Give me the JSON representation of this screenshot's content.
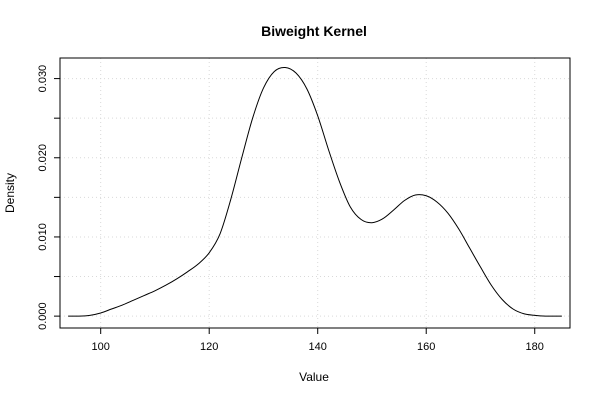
{
  "chart_data": {
    "type": "line",
    "title": "Biweight Kernel",
    "xlabel": "Value",
    "ylabel": "Density",
    "xlim": [
      92.5,
      186.5
    ],
    "ylim": [
      -0.0015,
      0.0326
    ],
    "xticks": [
      100,
      120,
      140,
      160,
      180
    ],
    "xtick_labels": [
      "100",
      "120",
      "140",
      "160",
      "180"
    ],
    "yticks": [
      0.0,
      0.005,
      0.01,
      0.015,
      0.02,
      0.025,
      0.03
    ],
    "ytick_labels": [
      "0.000",
      "",
      "0.010",
      "",
      "0.020",
      "",
      "0.030"
    ],
    "grid": true,
    "series": [
      {
        "x": [
          94,
          96,
          98,
          100,
          102,
          104,
          106,
          108,
          110,
          112,
          114,
          116,
          118,
          120,
          122,
          124,
          126,
          128,
          130,
          132,
          134,
          136,
          138,
          140,
          142,
          144,
          146,
          148,
          150,
          152,
          154,
          156,
          158,
          160,
          162,
          164,
          166,
          168,
          170,
          172,
          174,
          176,
          178,
          180,
          182,
          184,
          185
        ],
        "y": [
          0.0,
          0.0,
          0.0001,
          0.0004,
          0.0009,
          0.0014,
          0.002,
          0.0026,
          0.0032,
          0.0039,
          0.0047,
          0.0056,
          0.0066,
          0.008,
          0.0104,
          0.0148,
          0.02,
          0.025,
          0.0288,
          0.0309,
          0.0314,
          0.0307,
          0.0287,
          0.0253,
          0.021,
          0.017,
          0.0138,
          0.0122,
          0.0118,
          0.0123,
          0.0134,
          0.0146,
          0.0153,
          0.0152,
          0.0144,
          0.013,
          0.011,
          0.0086,
          0.0062,
          0.0039,
          0.0021,
          0.0009,
          0.0003,
          0.0001,
          0.0,
          0.0,
          0.0
        ]
      }
    ]
  }
}
